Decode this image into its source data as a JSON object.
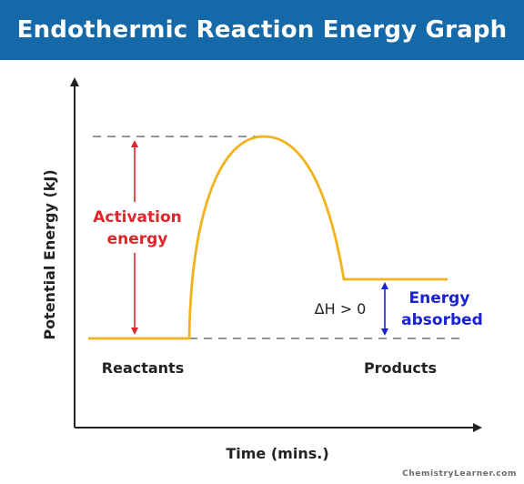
{
  "title": "Endothermic Reaction Energy Graph",
  "axes": {
    "y_label": "Potential Energy (kJ)",
    "x_label": "Time (mins.)"
  },
  "labels": {
    "activation_line1": "Activation",
    "activation_line2": "energy",
    "delta_h": "ΔH > 0",
    "absorbed_line1": "Energy",
    "absorbed_line2": "absorbed",
    "reactants": "Reactants",
    "products": "Products"
  },
  "watermark": "ChemistryLearner.com",
  "colors": {
    "title_bar": "#1569a8",
    "curve": "#f2b21c",
    "activation_arrow": "#e0252b",
    "absorbed_arrow": "#1a22d6",
    "dashes": "#555555",
    "axes": "#222222"
  }
}
